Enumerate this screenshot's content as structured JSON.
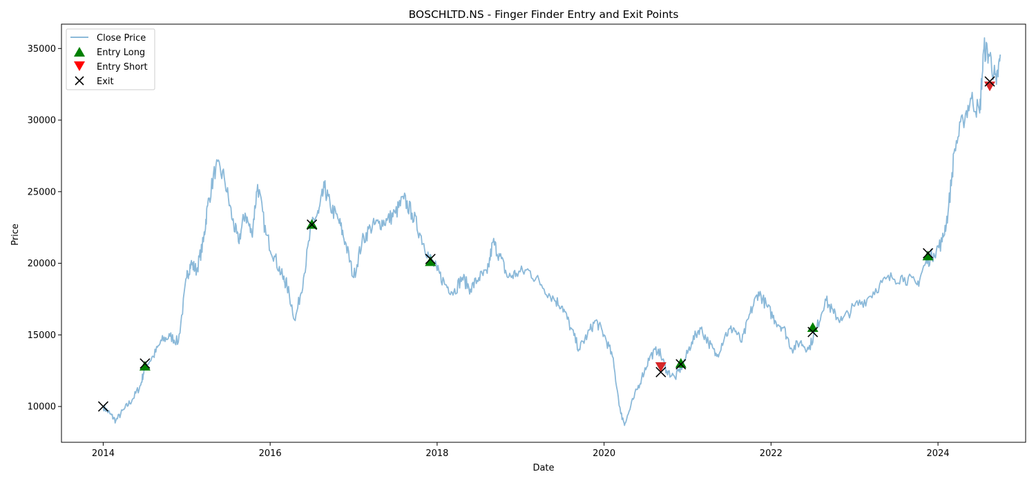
{
  "chart_data": {
    "type": "line",
    "title": "BOSCHLTD.NS - Finger Finder Entry and Exit Points",
    "xlabel": "Date",
    "ylabel": "Price",
    "xlim": [
      2013.5,
      2025.05
    ],
    "ylim": [
      7500,
      36700
    ],
    "x_ticks": [
      2014,
      2016,
      2018,
      2020,
      2022,
      2024
    ],
    "x_tick_labels": [
      "2014",
      "2016",
      "2018",
      "2020",
      "2022",
      "2024"
    ],
    "y_ticks": [
      10000,
      15000,
      20000,
      25000,
      30000,
      35000
    ],
    "y_tick_labels": [
      "10000",
      "15000",
      "20000",
      "25000",
      "30000",
      "35000"
    ],
    "grid": false,
    "legend": {
      "position": "top-left",
      "entries": [
        {
          "key": "close",
          "label": "Close Price",
          "marker": "line",
          "color": "#8bb9d9"
        },
        {
          "key": "entry_long",
          "label": "Entry Long",
          "marker": "triangle-up",
          "color": "#008000"
        },
        {
          "key": "entry_short",
          "label": "Entry Short",
          "marker": "triangle-down",
          "color": "#ff0000"
        },
        {
          "key": "exit",
          "label": "Exit",
          "marker": "x",
          "color": "#000000"
        }
      ]
    },
    "series": [
      {
        "name": "Close Price",
        "color": "#8bb9d9",
        "x": [
          2014.0,
          2014.08,
          2014.15,
          2014.25,
          2014.35,
          2014.45,
          2014.5,
          2014.6,
          2014.7,
          2014.8,
          2014.9,
          2015.0,
          2015.05,
          2015.12,
          2015.2,
          2015.25,
          2015.35,
          2015.45,
          2015.55,
          2015.62,
          2015.7,
          2015.78,
          2015.85,
          2015.95,
          2016.05,
          2016.15,
          2016.2,
          2016.3,
          2016.4,
          2016.5,
          2016.58,
          2016.65,
          2016.72,
          2016.82,
          2016.9,
          2017.0,
          2017.1,
          2017.2,
          2017.3,
          2017.4,
          2017.5,
          2017.6,
          2017.7,
          2017.8,
          2017.9,
          2018.0,
          2018.1,
          2018.2,
          2018.3,
          2018.4,
          2018.5,
          2018.6,
          2018.67,
          2018.75,
          2018.85,
          2018.95,
          2019.1,
          2019.25,
          2019.4,
          2019.5,
          2019.6,
          2019.7,
          2019.8,
          2019.9,
          2020.0,
          2020.1,
          2020.2,
          2020.25,
          2020.35,
          2020.45,
          2020.55,
          2020.65,
          2020.75,
          2020.85,
          2020.95,
          2021.05,
          2021.15,
          2021.25,
          2021.35,
          2021.45,
          2021.55,
          2021.65,
          2021.75,
          2021.85,
          2021.95,
          2022.05,
          2022.15,
          2022.25,
          2022.35,
          2022.45,
          2022.55,
          2022.65,
          2022.75,
          2022.85,
          2023.0,
          2023.15,
          2023.3,
          2023.45,
          2023.6,
          2023.75,
          2023.85,
          2023.95,
          2024.05,
          2024.12,
          2024.2,
          2024.3,
          2024.4,
          2024.5,
          2024.55,
          2024.62,
          2024.7,
          2024.75
        ],
        "y": [
          10000,
          9500,
          9000,
          9800,
          10500,
          11500,
          12800,
          13500,
          14600,
          14900,
          14500,
          19000,
          20000,
          19500,
          21500,
          24000,
          26800,
          26000,
          23000,
          21500,
          23500,
          22000,
          25500,
          22000,
          20500,
          19000,
          18500,
          16000,
          19000,
          22800,
          23500,
          25300,
          24000,
          23000,
          21500,
          19000,
          21500,
          22500,
          22800,
          23000,
          23500,
          24500,
          23500,
          22000,
          20500,
          19500,
          18500,
          18000,
          19000,
          18200,
          19000,
          19300,
          21500,
          20500,
          19000,
          19300,
          19500,
          18500,
          17500,
          17000,
          15500,
          14000,
          15000,
          16000,
          15000,
          13500,
          9500,
          8800,
          10500,
          12000,
          13500,
          14000,
          12500,
          12000,
          13000,
          14500,
          15500,
          14500,
          13500,
          15000,
          15500,
          14500,
          16500,
          18000,
          17000,
          16000,
          15500,
          14000,
          14500,
          14000,
          15500,
          17500,
          16500,
          16000,
          17000,
          17500,
          18500,
          19000,
          19000,
          18500,
          20000,
          20700,
          21500,
          23500,
          28000,
          30000,
          31500,
          30500,
          35000,
          34500,
          32500,
          34500
        ]
      }
    ],
    "entry_long": {
      "x": [
        2014.5,
        2016.5,
        2017.92,
        2020.92,
        2022.5,
        2023.88
      ],
      "y": [
        12800,
        22700,
        20100,
        13000,
        15500,
        20500
      ]
    },
    "entry_short": {
      "x": [
        2020.68,
        2024.62
      ],
      "y": [
        12800,
        32400
      ]
    },
    "exit": {
      "x": [
        2014.0,
        2014.5,
        2016.5,
        2017.92,
        2020.68,
        2020.92,
        2022.5,
        2023.88,
        2024.62
      ],
      "y": [
        10000,
        13000,
        22700,
        20300,
        12400,
        12950,
        15200,
        20700,
        32700
      ]
    }
  }
}
